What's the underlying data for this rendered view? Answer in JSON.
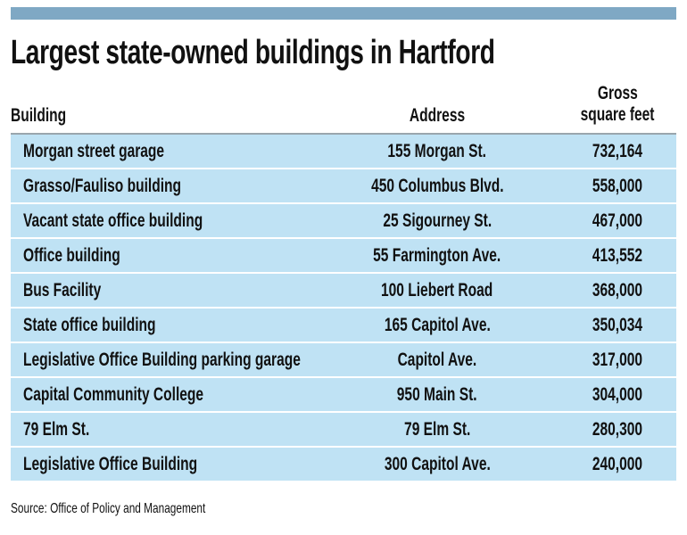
{
  "header_bar_color": "#7fa8c4",
  "row_color": "#bfe2f4",
  "title": "Largest state-owned buildings in Hartford",
  "columns": {
    "building": "Building",
    "address": "Address",
    "sqft_line1": "Gross",
    "sqft_line2": "square feet"
  },
  "rows": [
    {
      "building": "Morgan street garage",
      "address": "155 Morgan St.",
      "sqft": "732,164"
    },
    {
      "building": "Grasso/Fauliso building",
      "address": "450 Columbus Blvd.",
      "sqft": "558,000"
    },
    {
      "building": "Vacant state office building",
      "address": "25 Sigourney St.",
      "sqft": "467,000"
    },
    {
      "building": "Office building",
      "address": "55 Farmington Ave.",
      "sqft": "413,552"
    },
    {
      "building": "Bus Facility",
      "address": "100 Liebert Road",
      "sqft": "368,000"
    },
    {
      "building": "State office building",
      "address": "165 Capitol Ave.",
      "sqft": "350,034"
    },
    {
      "building": "Legislative Office Building parking garage",
      "address": "Capitol Ave.",
      "sqft": "317,000"
    },
    {
      "building": "Capital Community College",
      "address": "950 Main St.",
      "sqft": "304,000"
    },
    {
      "building": "79 Elm St.",
      "address": "79 Elm St.",
      "sqft": "280,300"
    },
    {
      "building": "Legislative Office Building",
      "address": "300 Capitol Ave.",
      "sqft": "240,000"
    }
  ],
  "source": "Source: Office of Policy and Management"
}
